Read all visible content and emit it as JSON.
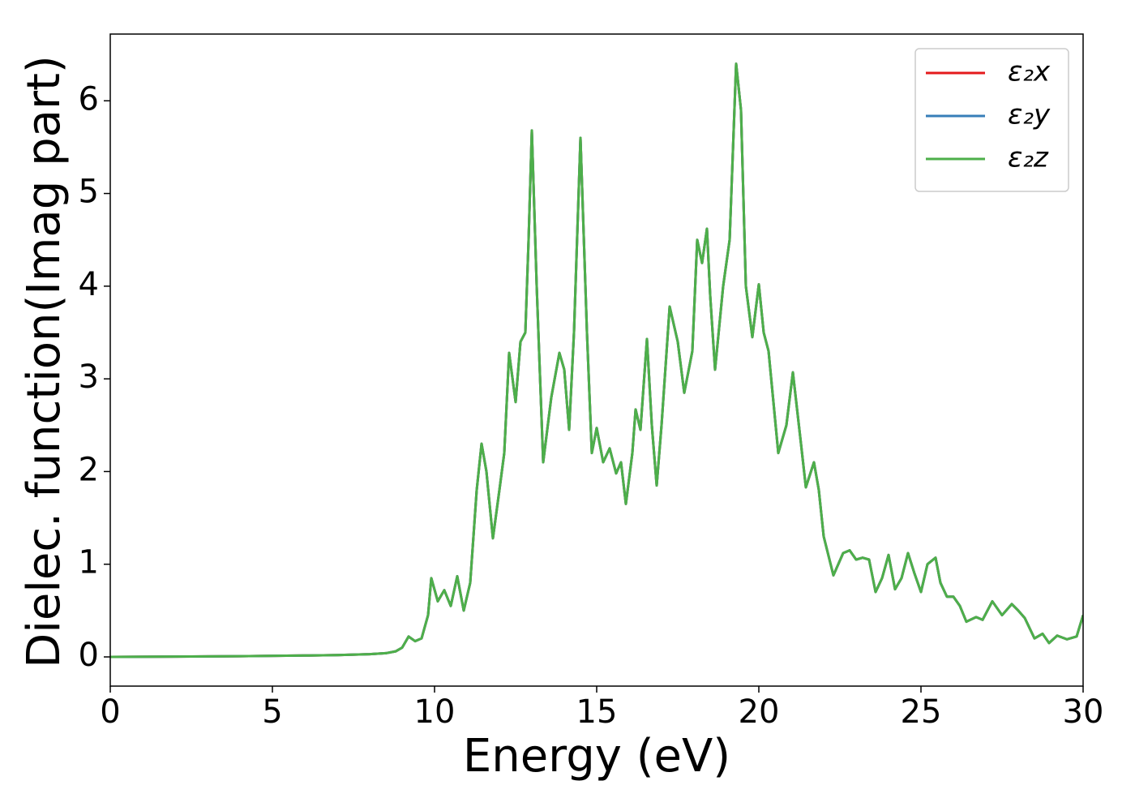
{
  "chart_data": {
    "type": "line",
    "xlabel": "Energy (eV)",
    "ylabel": "Dielec. function(Imag part)",
    "xlim": [
      0,
      30
    ],
    "xticks": [
      0,
      5,
      10,
      15,
      20,
      25,
      30
    ],
    "ylim": [
      -0.315,
      6.72
    ],
    "yticks": [
      0,
      1,
      2,
      3,
      4,
      5,
      6
    ],
    "legend": "upper right",
    "grid": false,
    "x": [
      0,
      2,
      4,
      6,
      7,
      8,
      8.5,
      8.8,
      9.0,
      9.2,
      9.4,
      9.6,
      9.8,
      9.9,
      10.1,
      10.3,
      10.5,
      10.7,
      10.9,
      11.1,
      11.3,
      11.45,
      11.6,
      11.8,
      12.0,
      12.15,
      12.3,
      12.5,
      12.65,
      12.8,
      12.9,
      13.0,
      13.15,
      13.35,
      13.6,
      13.85,
      14.0,
      14.15,
      14.3,
      14.5,
      14.7,
      14.85,
      15.0,
      15.2,
      15.4,
      15.6,
      15.75,
      15.9,
      16.1,
      16.2,
      16.35,
      16.55,
      16.7,
      16.85,
      17.0,
      17.25,
      17.5,
      17.7,
      17.95,
      18.1,
      18.25,
      18.4,
      18.5,
      18.65,
      18.9,
      19.1,
      19.3,
      19.45,
      19.6,
      19.8,
      20.0,
      20.15,
      20.3,
      20.6,
      20.85,
      21.05,
      21.3,
      21.45,
      21.7,
      21.85,
      22.0,
      22.3,
      22.6,
      22.8,
      23.0,
      23.2,
      23.4,
      23.6,
      23.8,
      24.0,
      24.2,
      24.4,
      24.6,
      24.8,
      25.0,
      25.2,
      25.45,
      25.6,
      25.8,
      26.0,
      26.2,
      26.4,
      26.7,
      26.9,
      27.2,
      27.5,
      27.8,
      28.0,
      28.2,
      28.5,
      28.75,
      28.95,
      29.2,
      29.5,
      29.8,
      30.0
    ],
    "series": [
      {
        "name": "ε₂x",
        "color": "#e41a1c",
        "values": [
          0,
          0.003,
          0.008,
          0.015,
          0.02,
          0.03,
          0.04,
          0.06,
          0.1,
          0.22,
          0.17,
          0.2,
          0.45,
          0.85,
          0.6,
          0.72,
          0.55,
          0.87,
          0.5,
          0.8,
          1.8,
          2.3,
          2.0,
          1.28,
          1.8,
          2.2,
          3.28,
          2.75,
          3.4,
          3.5,
          4.5,
          5.68,
          4.0,
          2.1,
          2.8,
          3.28,
          3.1,
          2.45,
          3.5,
          5.6,
          3.5,
          2.2,
          2.47,
          2.1,
          2.25,
          1.98,
          2.1,
          1.65,
          2.2,
          2.67,
          2.45,
          3.43,
          2.5,
          1.85,
          2.5,
          3.78,
          3.4,
          2.85,
          3.3,
          4.5,
          4.25,
          4.62,
          3.9,
          3.1,
          4.0,
          4.5,
          6.4,
          5.9,
          4.0,
          3.45,
          4.02,
          3.5,
          3.3,
          2.2,
          2.5,
          3.07,
          2.3,
          1.83,
          2.1,
          1.8,
          1.3,
          0.88,
          1.12,
          1.15,
          1.05,
          1.07,
          1.05,
          0.7,
          0.85,
          1.1,
          0.73,
          0.85,
          1.12,
          0.9,
          0.7,
          1.0,
          1.07,
          0.8,
          0.65,
          0.65,
          0.55,
          0.38,
          0.43,
          0.4,
          0.6,
          0.45,
          0.57,
          0.5,
          0.42,
          0.2,
          0.25,
          0.15,
          0.23,
          0.19,
          0.22,
          0.45
        ]
      },
      {
        "name": "ε₂y",
        "color": "#377eb8",
        "values": [
          0,
          0.003,
          0.008,
          0.015,
          0.02,
          0.03,
          0.04,
          0.06,
          0.1,
          0.22,
          0.17,
          0.2,
          0.45,
          0.85,
          0.6,
          0.72,
          0.55,
          0.87,
          0.5,
          0.8,
          1.8,
          2.3,
          2.0,
          1.28,
          1.8,
          2.2,
          3.28,
          2.75,
          3.4,
          3.5,
          4.5,
          5.68,
          4.0,
          2.1,
          2.8,
          3.28,
          3.1,
          2.45,
          3.5,
          5.6,
          3.5,
          2.2,
          2.47,
          2.1,
          2.25,
          1.98,
          2.1,
          1.65,
          2.2,
          2.67,
          2.45,
          3.43,
          2.5,
          1.85,
          2.5,
          3.78,
          3.4,
          2.85,
          3.3,
          4.5,
          4.25,
          4.62,
          3.9,
          3.1,
          4.0,
          4.5,
          6.4,
          5.9,
          4.0,
          3.45,
          4.02,
          3.5,
          3.3,
          2.2,
          2.5,
          3.07,
          2.3,
          1.83,
          2.1,
          1.8,
          1.3,
          0.88,
          1.12,
          1.15,
          1.05,
          1.07,
          1.05,
          0.7,
          0.85,
          1.1,
          0.73,
          0.85,
          1.12,
          0.9,
          0.7,
          1.0,
          1.07,
          0.8,
          0.65,
          0.65,
          0.55,
          0.38,
          0.43,
          0.4,
          0.6,
          0.45,
          0.57,
          0.5,
          0.42,
          0.2,
          0.25,
          0.15,
          0.23,
          0.19,
          0.22,
          0.45
        ]
      },
      {
        "name": "ε₂z",
        "color": "#4daf4a",
        "values": [
          0,
          0.003,
          0.008,
          0.015,
          0.02,
          0.03,
          0.04,
          0.06,
          0.1,
          0.22,
          0.17,
          0.2,
          0.45,
          0.85,
          0.6,
          0.72,
          0.55,
          0.87,
          0.5,
          0.8,
          1.8,
          2.3,
          2.0,
          1.28,
          1.8,
          2.2,
          3.28,
          2.75,
          3.4,
          3.5,
          4.5,
          5.68,
          4.0,
          2.1,
          2.8,
          3.28,
          3.1,
          2.45,
          3.5,
          5.6,
          3.5,
          2.2,
          2.47,
          2.1,
          2.25,
          1.98,
          2.1,
          1.65,
          2.2,
          2.67,
          2.45,
          3.43,
          2.5,
          1.85,
          2.5,
          3.78,
          3.4,
          2.85,
          3.3,
          4.5,
          4.25,
          4.62,
          3.9,
          3.1,
          4.0,
          4.5,
          6.4,
          5.9,
          4.0,
          3.45,
          4.02,
          3.5,
          3.3,
          2.2,
          2.5,
          3.07,
          2.3,
          1.83,
          2.1,
          1.8,
          1.3,
          0.88,
          1.12,
          1.15,
          1.05,
          1.07,
          1.05,
          0.7,
          0.85,
          1.1,
          0.73,
          0.85,
          1.12,
          0.9,
          0.7,
          1.0,
          1.07,
          0.8,
          0.65,
          0.65,
          0.55,
          0.38,
          0.43,
          0.4,
          0.6,
          0.45,
          0.57,
          0.5,
          0.42,
          0.2,
          0.25,
          0.15,
          0.23,
          0.19,
          0.22,
          0.45
        ]
      }
    ]
  }
}
